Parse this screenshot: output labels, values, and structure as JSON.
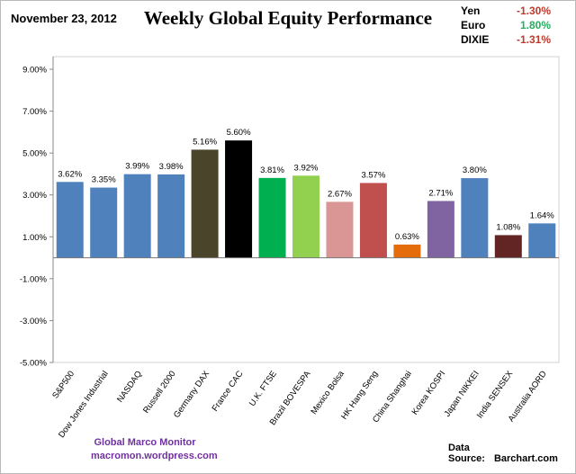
{
  "header": {
    "date": "November 23, 2012",
    "title": "Weekly Global Equity Performance"
  },
  "currencies": [
    {
      "name": "Yen",
      "value": "-1.30%",
      "color": "#c0392b"
    },
    {
      "name": "Euro",
      "value": "1.80%",
      "color": "#27ae60"
    },
    {
      "name": "DIXIE",
      "value": "-1.31%",
      "color": "#c0392b"
    }
  ],
  "footer": {
    "brand_line1": "Global  Marco  Monitor",
    "brand_line2": "macromon.wordpress.com",
    "source_label": "Data Source:",
    "source_value": "Barchart.com"
  },
  "chart_data": {
    "type": "bar",
    "title": "Weekly Global Equity Performance",
    "xlabel": "",
    "ylabel": "",
    "ylim": [
      -5,
      10
    ],
    "yticks": [
      -5,
      -3,
      -1,
      1,
      3,
      5,
      7,
      9
    ],
    "ytick_labels": [
      "-5.00%",
      "-3.00%",
      "-1.00%",
      "1.00%",
      "3.00%",
      "5.00%",
      "7.00%",
      "9.00%"
    ],
    "categories": [
      "S&P500",
      "Dow Jones Industrial",
      "NASDAQ",
      "Russell 2000",
      "Germany DAX",
      "France CAC",
      "U.K. FTSE",
      "Brazil BOVESPA",
      "Mexico Bolsa",
      "HK Hang Seng",
      "China Shanghai",
      "Korea KOSPI",
      "Japan NIKKEI",
      "India SENSEX",
      "Australia AORD"
    ],
    "values": [
      3.62,
      3.35,
      3.99,
      3.98,
      5.16,
      5.6,
      3.81,
      3.92,
      2.67,
      3.57,
      0.63,
      2.71,
      3.8,
      1.08,
      1.64
    ],
    "data_labels": [
      "3.62%",
      "3.35%",
      "3.99%",
      "3.98%",
      "5.16%",
      "5.60%",
      "3.81%",
      "3.92%",
      "2.67%",
      "3.57%",
      "0.63%",
      "2.71%",
      "3.80%",
      "1.08%",
      "1.64%"
    ],
    "colors": [
      "#4f81bd",
      "#4f81bd",
      "#4f81bd",
      "#4f81bd",
      "#4a442a",
      "#000000",
      "#00b050",
      "#92d050",
      "#d99694",
      "#c0504d",
      "#e46c0a",
      "#8064a2",
      "#4f81bd",
      "#632523",
      "#4f81bd"
    ],
    "grid": false,
    "legend": "none"
  }
}
